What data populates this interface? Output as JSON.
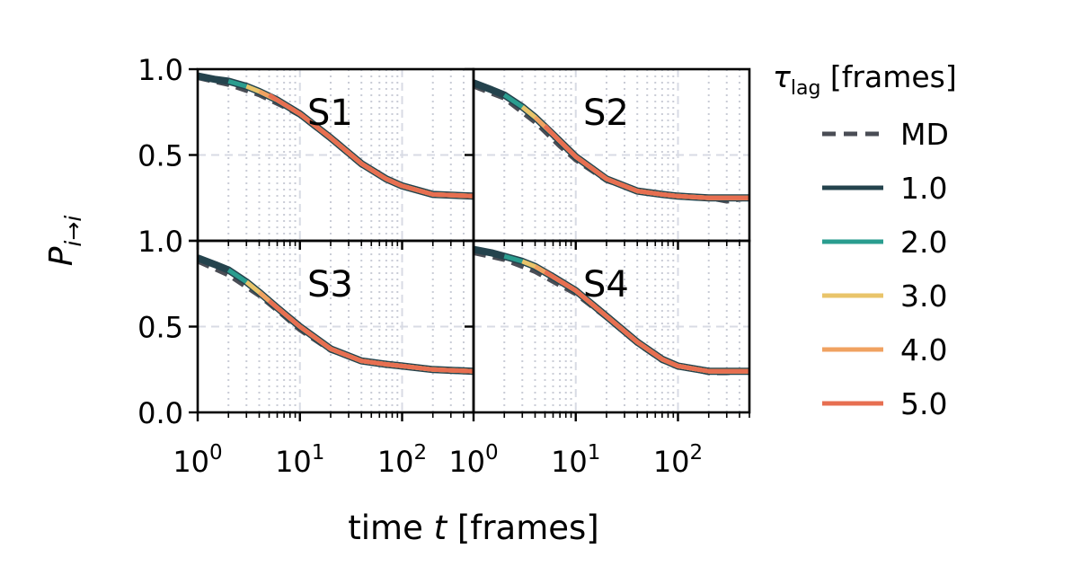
{
  "chart_data": {
    "type": "line",
    "x_scale": "log",
    "xlim": [
      1,
      500
    ],
    "ylim": [
      0,
      1
    ],
    "xlabel": "time t [frames]",
    "ylabel": "P i→i",
    "xticks": [
      {
        "value": 1,
        "base": "10",
        "exp": "0"
      },
      {
        "value": 10,
        "base": "10",
        "exp": "1"
      },
      {
        "value": 100,
        "base": "10",
        "exp": "2"
      }
    ],
    "yticks": [
      "0.0",
      "0.5",
      "1.0"
    ],
    "grid": true,
    "legend": {
      "title_symbol": "τ",
      "title_sub": "lag",
      "title_rest": " [frames]",
      "placement": "right",
      "entries": [
        {
          "label": "MD",
          "color": "#4a4d55",
          "dash": true
        },
        {
          "label": "1.0",
          "color": "#24434d",
          "dash": false
        },
        {
          "label": "2.0",
          "color": "#2a9d8f",
          "dash": false
        },
        {
          "label": "3.0",
          "color": "#e9c46a",
          "dash": false
        },
        {
          "label": "4.0",
          "color": "#f0a261",
          "dash": false
        },
        {
          "label": "5.0",
          "color": "#e76f51",
          "dash": false
        }
      ]
    },
    "panels": [
      {
        "label": "S1",
        "md": {
          "x": [
            1,
            2,
            4,
            7,
            10,
            20,
            40,
            70,
            100,
            200,
            300,
            500
          ],
          "y": [
            0.95,
            0.91,
            0.85,
            0.78,
            0.73,
            0.59,
            0.44,
            0.36,
            0.32,
            0.27,
            0.26,
            0.26
          ]
        },
        "series": [
          {
            "tau": "1.0",
            "x": [
              1,
              1.5,
              2,
              3,
              4,
              6,
              10,
              20,
              40,
              70,
              100,
              200,
              500
            ],
            "y": [
              0.96,
              0.94,
              0.93,
              0.9,
              0.87,
              0.82,
              0.74,
              0.6,
              0.45,
              0.36,
              0.32,
              0.27,
              0.26
            ]
          },
          {
            "tau": "2.0",
            "x": [
              2,
              3,
              4,
              6,
              10,
              20,
              40,
              70,
              100,
              200,
              500
            ],
            "y": [
              0.93,
              0.9,
              0.87,
              0.82,
              0.74,
              0.6,
              0.45,
              0.36,
              0.32,
              0.27,
              0.26
            ]
          },
          {
            "tau": "3.0",
            "x": [
              3,
              4,
              6,
              10,
              20,
              40,
              70,
              100,
              200,
              500
            ],
            "y": [
              0.9,
              0.87,
              0.82,
              0.74,
              0.6,
              0.45,
              0.36,
              0.32,
              0.27,
              0.26
            ]
          },
          {
            "tau": "4.0",
            "x": [
              4,
              6,
              10,
              20,
              40,
              70,
              100,
              200,
              500
            ],
            "y": [
              0.87,
              0.82,
              0.74,
              0.6,
              0.45,
              0.36,
              0.32,
              0.27,
              0.26
            ]
          },
          {
            "tau": "5.0",
            "x": [
              5,
              6,
              10,
              20,
              40,
              70,
              100,
              200,
              500
            ],
            "y": [
              0.85,
              0.82,
              0.74,
              0.6,
              0.45,
              0.36,
              0.32,
              0.27,
              0.26
            ]
          }
        ]
      },
      {
        "label": "S2",
        "md": {
          "x": [
            1,
            2,
            4,
            7,
            10,
            20,
            40,
            70,
            100,
            200,
            300,
            500
          ],
          "y": [
            0.9,
            0.83,
            0.69,
            0.55,
            0.47,
            0.35,
            0.29,
            0.27,
            0.26,
            0.25,
            0.23,
            0.25
          ]
        },
        "series": [
          {
            "tau": "1.0",
            "x": [
              1,
              1.5,
              2,
              3,
              4,
              6,
              10,
              20,
              40,
              70,
              100,
              200,
              500
            ],
            "y": [
              0.92,
              0.88,
              0.85,
              0.78,
              0.72,
              0.62,
              0.49,
              0.36,
              0.29,
              0.27,
              0.26,
              0.25,
              0.25
            ]
          },
          {
            "tau": "2.0",
            "x": [
              2,
              3,
              4,
              6,
              10,
              20,
              40,
              70,
              100,
              200,
              500
            ],
            "y": [
              0.85,
              0.78,
              0.72,
              0.62,
              0.49,
              0.36,
              0.29,
              0.27,
              0.26,
              0.25,
              0.25
            ]
          },
          {
            "tau": "3.0",
            "x": [
              3,
              4,
              6,
              10,
              20,
              40,
              70,
              100,
              200,
              500
            ],
            "y": [
              0.78,
              0.72,
              0.62,
              0.49,
              0.36,
              0.29,
              0.27,
              0.26,
              0.25,
              0.25
            ]
          },
          {
            "tau": "4.0",
            "x": [
              4,
              6,
              10,
              20,
              40,
              70,
              100,
              200,
              500
            ],
            "y": [
              0.72,
              0.62,
              0.49,
              0.36,
              0.29,
              0.27,
              0.26,
              0.25,
              0.25
            ]
          },
          {
            "tau": "5.0",
            "x": [
              5,
              6,
              10,
              20,
              40,
              70,
              100,
              200,
              500
            ],
            "y": [
              0.67,
              0.62,
              0.49,
              0.36,
              0.29,
              0.27,
              0.26,
              0.25,
              0.25
            ]
          }
        ]
      },
      {
        "label": "S3",
        "md": {
          "x": [
            1,
            2,
            4,
            7,
            10,
            20,
            40,
            70,
            100,
            200,
            300,
            500
          ],
          "y": [
            0.88,
            0.8,
            0.68,
            0.56,
            0.48,
            0.36,
            0.3,
            0.28,
            0.27,
            0.25,
            0.24,
            0.24
          ]
        },
        "series": [
          {
            "tau": "1.0",
            "x": [
              1,
              1.5,
              2,
              3,
              4,
              6,
              10,
              20,
              40,
              70,
              100,
              200,
              500
            ],
            "y": [
              0.9,
              0.86,
              0.83,
              0.76,
              0.7,
              0.61,
              0.5,
              0.37,
              0.3,
              0.28,
              0.27,
              0.25,
              0.24
            ]
          },
          {
            "tau": "2.0",
            "x": [
              2,
              3,
              4,
              6,
              10,
              20,
              40,
              70,
              100,
              200,
              500
            ],
            "y": [
              0.83,
              0.76,
              0.7,
              0.61,
              0.5,
              0.37,
              0.3,
              0.28,
              0.27,
              0.25,
              0.24
            ]
          },
          {
            "tau": "3.0",
            "x": [
              3,
              4,
              6,
              10,
              20,
              40,
              70,
              100,
              200,
              500
            ],
            "y": [
              0.76,
              0.7,
              0.61,
              0.5,
              0.37,
              0.3,
              0.28,
              0.27,
              0.25,
              0.24
            ]
          },
          {
            "tau": "4.0",
            "x": [
              4,
              6,
              10,
              20,
              40,
              70,
              100,
              200,
              500
            ],
            "y": [
              0.7,
              0.61,
              0.5,
              0.37,
              0.3,
              0.28,
              0.27,
              0.25,
              0.24
            ]
          },
          {
            "tau": "5.0",
            "x": [
              5,
              6,
              10,
              20,
              40,
              70,
              100,
              200,
              500
            ],
            "y": [
              0.65,
              0.61,
              0.5,
              0.37,
              0.3,
              0.28,
              0.27,
              0.25,
              0.24
            ]
          }
        ]
      },
      {
        "label": "S4",
        "md": {
          "x": [
            1,
            2,
            4,
            7,
            10,
            20,
            40,
            70,
            100,
            200,
            300,
            500
          ],
          "y": [
            0.93,
            0.89,
            0.82,
            0.74,
            0.69,
            0.55,
            0.4,
            0.3,
            0.27,
            0.23,
            0.23,
            0.24
          ]
        },
        "series": [
          {
            "tau": "1.0",
            "x": [
              1,
              1.5,
              2,
              3,
              4,
              6,
              10,
              20,
              40,
              70,
              100,
              200,
              500
            ],
            "y": [
              0.95,
              0.93,
              0.91,
              0.88,
              0.85,
              0.79,
              0.71,
              0.56,
              0.41,
              0.31,
              0.27,
              0.24,
              0.24
            ]
          },
          {
            "tau": "2.0",
            "x": [
              2,
              3,
              4,
              6,
              10,
              20,
              40,
              70,
              100,
              200,
              500
            ],
            "y": [
              0.91,
              0.88,
              0.85,
              0.79,
              0.71,
              0.56,
              0.41,
              0.31,
              0.27,
              0.24,
              0.24
            ]
          },
          {
            "tau": "3.0",
            "x": [
              3,
              4,
              6,
              10,
              20,
              40,
              70,
              100,
              200,
              500
            ],
            "y": [
              0.88,
              0.85,
              0.79,
              0.71,
              0.56,
              0.41,
              0.31,
              0.27,
              0.24,
              0.24
            ]
          },
          {
            "tau": "4.0",
            "x": [
              4,
              6,
              10,
              20,
              40,
              70,
              100,
              200,
              500
            ],
            "y": [
              0.85,
              0.79,
              0.71,
              0.56,
              0.41,
              0.31,
              0.27,
              0.24,
              0.24
            ]
          },
          {
            "tau": "5.0",
            "x": [
              5,
              6,
              10,
              20,
              40,
              70,
              100,
              200,
              500
            ],
            "y": [
              0.82,
              0.79,
              0.71,
              0.56,
              0.41,
              0.31,
              0.27,
              0.24,
              0.24
            ]
          }
        ]
      }
    ]
  }
}
